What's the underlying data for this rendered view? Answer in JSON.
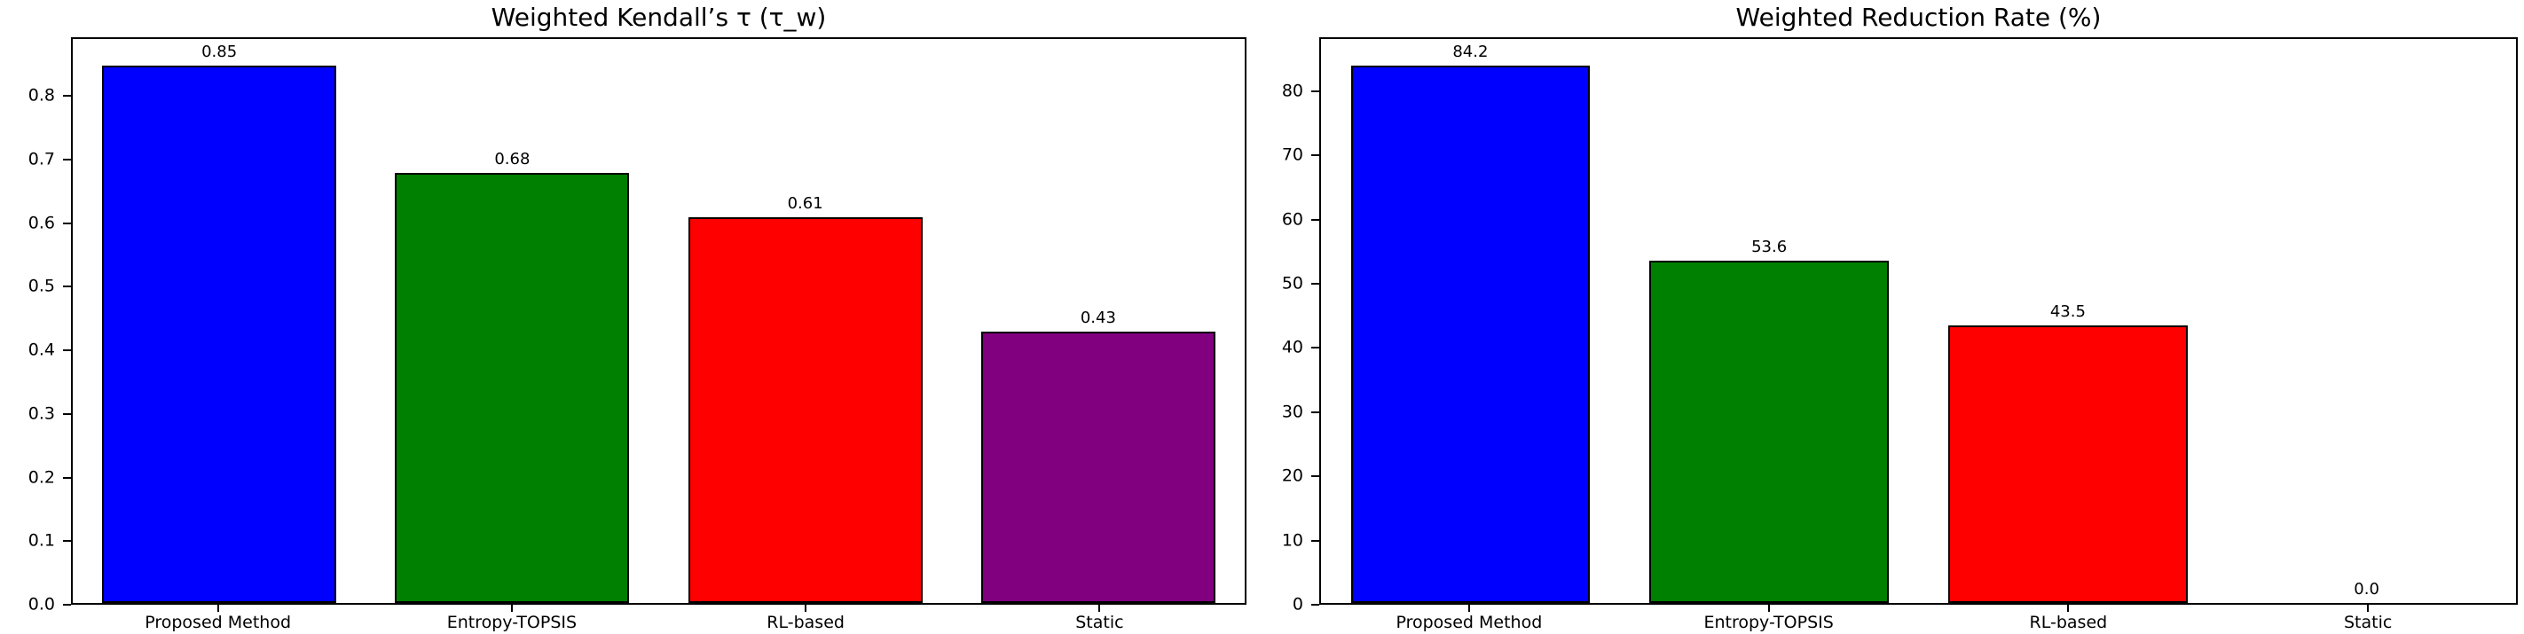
{
  "figure": {
    "background": "#ffffff",
    "text_color": "#000000",
    "axes_edge_color": "#000000"
  },
  "chart_data": [
    {
      "type": "bar",
      "title": "Weighted Kendall’s τ (τ_w)",
      "categories": [
        "Proposed Method",
        "Entropy-TOPSIS",
        "RL-based",
        "Static"
      ],
      "values": [
        0.85,
        0.68,
        0.61,
        0.43
      ],
      "value_labels": [
        "0.85",
        "0.68",
        "0.61",
        "0.43"
      ],
      "bar_colors": [
        "#0000ff",
        "#008000",
        "#ff0000",
        "#800080"
      ],
      "bar_edge_color": "#000000",
      "xlabel": "",
      "ylabel": "",
      "ylim": [
        0,
        0.8925
      ],
      "yticks": [
        0,
        0.1,
        0.2,
        0.3,
        0.4,
        0.5,
        0.6,
        0.7,
        0.8
      ],
      "ytick_labels": [
        "0.0",
        "0.1",
        "0.2",
        "0.3",
        "0.4",
        "0.5",
        "0.6",
        "0.7",
        "0.8"
      ],
      "grid": false,
      "legend": "none"
    },
    {
      "type": "bar",
      "title": "Weighted Reduction Rate (%)",
      "categories": [
        "Proposed Method",
        "Entropy-TOPSIS",
        "RL-based",
        "Static"
      ],
      "values": [
        84.2,
        53.6,
        43.5,
        0.0
      ],
      "value_labels": [
        "84.2",
        "53.6",
        "43.5",
        "0.0"
      ],
      "bar_colors": [
        "#0000ff",
        "#008000",
        "#ff0000",
        "#800080"
      ],
      "bar_edge_color": "#000000",
      "xlabel": "",
      "ylabel": "",
      "ylim": [
        0,
        88.41
      ],
      "yticks": [
        0,
        10,
        20,
        30,
        40,
        50,
        60,
        70,
        80
      ],
      "ytick_labels": [
        "0",
        "10",
        "20",
        "30",
        "40",
        "50",
        "60",
        "70",
        "80"
      ],
      "grid": false,
      "legend": "none"
    }
  ]
}
